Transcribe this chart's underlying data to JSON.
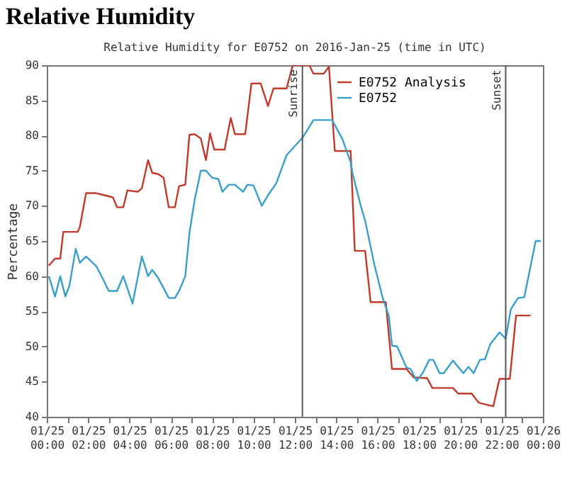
{
  "chart_data": {
    "type": "line",
    "title": "Relative Humidity",
    "subtitle": "Relative Humidity for E0752 on 2016-Jan-25 (time in UTC)",
    "ylabel": "Percentage",
    "xlim": [
      "2016-01-25T00:00",
      "2016-01-26T00:00"
    ],
    "ylim": [
      40,
      90
    ],
    "xticks": [
      {
        "value": "2016-01-25T00:00",
        "label": "01/25 00:00"
      },
      {
        "value": "2016-01-25T01:00",
        "label": null
      },
      {
        "value": "2016-01-25T02:00",
        "label": "01/25 02:00"
      },
      {
        "value": "2016-01-25T03:00",
        "label": null
      },
      {
        "value": "2016-01-25T04:00",
        "label": "01/25 04:00"
      },
      {
        "value": "2016-01-25T05:00",
        "label": null
      },
      {
        "value": "2016-01-25T06:00",
        "label": "01/25 06:00"
      },
      {
        "value": "2016-01-25T07:00",
        "label": null
      },
      {
        "value": "2016-01-25T08:00",
        "label": "01/25 08:00"
      },
      {
        "value": "2016-01-25T09:00",
        "label": null
      },
      {
        "value": "2016-01-25T10:00",
        "label": "01/25 10:00"
      },
      {
        "value": "2016-01-25T11:00",
        "label": null
      },
      {
        "value": "2016-01-25T12:00",
        "label": "01/25 12:00"
      },
      {
        "value": "2016-01-25T13:00",
        "label": null
      },
      {
        "value": "2016-01-25T14:00",
        "label": "01/25 14:00"
      },
      {
        "value": "2016-01-25T15:00",
        "label": null
      },
      {
        "value": "2016-01-25T16:00",
        "label": "01/25 16:00"
      },
      {
        "value": "2016-01-25T17:00",
        "label": null
      },
      {
        "value": "2016-01-25T18:00",
        "label": "01/25 18:00"
      },
      {
        "value": "2016-01-25T19:00",
        "label": null
      },
      {
        "value": "2016-01-25T20:00",
        "label": "01/25 20:00"
      },
      {
        "value": "2016-01-25T21:00",
        "label": null
      },
      {
        "value": "2016-01-25T22:00",
        "label": "01/25 22:00"
      },
      {
        "value": "2016-01-25T23:00",
        "label": null
      },
      {
        "value": "2016-01-26T00:00",
        "label": "01/26 00:00"
      }
    ],
    "yticks": [
      40,
      45,
      50,
      55,
      60,
      65,
      70,
      75,
      80,
      85,
      90
    ],
    "grid": false,
    "legend": "top right",
    "line_style": "solid",
    "ref_lines": [
      {
        "axis": "x",
        "value": "2016-01-25T12:22",
        "label": "Sunrise",
        "color": "#555555"
      },
      {
        "axis": "x",
        "value": "2016-01-25T22:12",
        "label": "Sunset",
        "color": "#555555"
      }
    ],
    "series": [
      {
        "name": "E0752 Analysis",
        "color": "#c0392b",
        "x": [
          "2016-01-25T00:06",
          "2016-01-25T00:24",
          "2016-01-25T00:39",
          "2016-01-25T00:48",
          "2016-01-25T01:30",
          "2016-01-25T01:36",
          "2016-01-25T01:54",
          "2016-01-25T02:24",
          "2016-01-25T02:48",
          "2016-01-25T03:12",
          "2016-01-25T03:24",
          "2016-01-25T03:42",
          "2016-01-25T03:54",
          "2016-01-25T04:24",
          "2016-01-25T04:36",
          "2016-01-25T04:54",
          "2016-01-25T05:06",
          "2016-01-25T05:24",
          "2016-01-25T05:39",
          "2016-01-25T05:54",
          "2016-01-25T06:12",
          "2016-01-25T06:24",
          "2016-01-25T06:42",
          "2016-01-25T06:54",
          "2016-01-25T07:09",
          "2016-01-25T07:27",
          "2016-01-25T07:42",
          "2016-01-25T07:54",
          "2016-01-25T08:06",
          "2016-01-25T08:36",
          "2016-01-25T08:54",
          "2016-01-25T09:06",
          "2016-01-25T09:36",
          "2016-01-25T09:54",
          "2016-01-25T10:21",
          "2016-01-25T10:42",
          "2016-01-25T10:58",
          "2016-01-25T11:36",
          "2016-01-25T11:54",
          "2016-01-25T12:42",
          "2016-01-25T12:54",
          "2016-01-25T13:24",
          "2016-01-25T13:39",
          "2016-01-25T13:56",
          "2016-01-25T14:42",
          "2016-01-25T14:54",
          "2016-01-25T15:24",
          "2016-01-25T15:40",
          "2016-01-25T16:24",
          "2016-01-25T16:42",
          "2016-01-25T17:24",
          "2016-01-25T17:45",
          "2016-01-25T18:24",
          "2016-01-25T18:39",
          "2016-01-25T19:39",
          "2016-01-25T19:54",
          "2016-01-25T20:33",
          "2016-01-25T20:54",
          "2016-01-25T21:18",
          "2016-01-25T21:36",
          "2016-01-25T21:54",
          "2016-01-25T22:24",
          "2016-01-25T22:42",
          "2016-01-25T23:24"
        ],
        "values": [
          61.5,
          62.5,
          62.5,
          66.3,
          66.3,
          67,
          71.8,
          71.8,
          71.5,
          71.2,
          69.8,
          69.8,
          72.2,
          72,
          72.5,
          76.5,
          74.7,
          74.5,
          74,
          69.8,
          69.8,
          72.8,
          73,
          80.1,
          80.2,
          79.6,
          76.5,
          80.3,
          78,
          78,
          82.5,
          80.2,
          80.2,
          87.4,
          87.4,
          84.2,
          86.7,
          86.7,
          90,
          90,
          88.8,
          88.8,
          89.8,
          77.8,
          77.8,
          63.6,
          63.6,
          56.3,
          56.3,
          46.8,
          46.8,
          45.6,
          45.5,
          44.1,
          44.1,
          43.3,
          43.3,
          42,
          41.7,
          41.5,
          45.4,
          45.4,
          54.4,
          54.4
        ]
      },
      {
        "name": "E0752",
        "color": "#3a9fc8",
        "x": [
          "2016-01-25T00:06",
          "2016-01-25T00:24",
          "2016-01-25T00:39",
          "2016-01-25T00:54",
          "2016-01-25T01:06",
          "2016-01-25T01:24",
          "2016-01-25T01:36",
          "2016-01-25T01:54",
          "2016-01-25T02:24",
          "2016-01-25T02:42",
          "2016-01-25T03:00",
          "2016-01-25T03:24",
          "2016-01-25T03:42",
          "2016-01-25T04:09",
          "2016-01-25T04:36",
          "2016-01-25T04:54",
          "2016-01-25T05:06",
          "2016-01-25T05:24",
          "2016-01-25T05:54",
          "2016-01-25T06:12",
          "2016-01-25T06:24",
          "2016-01-25T06:42",
          "2016-01-25T06:54",
          "2016-01-25T07:09",
          "2016-01-25T07:27",
          "2016-01-25T07:42",
          "2016-01-25T08:00",
          "2016-01-25T08:18",
          "2016-01-25T08:30",
          "2016-01-25T08:48",
          "2016-01-25T09:06",
          "2016-01-25T09:30",
          "2016-01-25T09:42",
          "2016-01-25T10:00",
          "2016-01-25T10:24",
          "2016-01-25T10:42",
          "2016-01-25T11:06",
          "2016-01-25T11:36",
          "2016-01-25T12:24",
          "2016-01-25T12:54",
          "2016-01-25T13:48",
          "2016-01-25T14:18",
          "2016-01-25T14:42",
          "2016-01-25T14:48",
          "2016-01-25T15:12",
          "2016-01-25T15:24",
          "2016-01-25T15:51",
          "2016-01-25T16:15",
          "2016-01-25T16:33",
          "2016-01-25T16:42",
          "2016-01-25T16:57",
          "2016-01-25T17:24",
          "2016-01-25T17:36",
          "2016-01-25T17:54",
          "2016-01-25T18:12",
          "2016-01-25T18:30",
          "2016-01-25T18:42",
          "2016-01-25T19:00",
          "2016-01-25T19:12",
          "2016-01-25T19:39",
          "2016-01-25T20:09",
          "2016-01-25T20:24",
          "2016-01-25T20:39",
          "2016-01-25T20:57",
          "2016-01-25T21:12",
          "2016-01-25T21:27",
          "2016-01-25T21:54",
          "2016-01-25T22:12",
          "2016-01-25T22:27",
          "2016-01-25T22:48",
          "2016-01-25T23:06",
          "2016-01-25T23:39",
          "2016-01-25T23:54"
        ],
        "values": [
          60,
          57.1,
          60,
          57.1,
          58.7,
          63.9,
          61.9,
          62.8,
          61.4,
          59.7,
          57.9,
          57.9,
          60,
          56.1,
          62.8,
          60,
          60.9,
          59.7,
          56.9,
          56.9,
          57.9,
          60,
          66.1,
          70.8,
          75,
          75,
          74,
          73.8,
          72,
          73,
          73,
          72,
          73,
          72.9,
          70,
          71.5,
          73.2,
          77.2,
          79.8,
          82.2,
          82.2,
          79.5,
          76.2,
          74.5,
          69.9,
          67.9,
          61.6,
          56.9,
          54.3,
          50.1,
          50,
          47,
          46.8,
          45.1,
          46.3,
          48.1,
          48.1,
          46.2,
          46.2,
          48,
          46.2,
          47.1,
          46.2,
          48.1,
          48.2,
          50.3,
          52,
          51.1,
          55.3,
          56.9,
          57,
          65,
          65
        ]
      }
    ]
  }
}
